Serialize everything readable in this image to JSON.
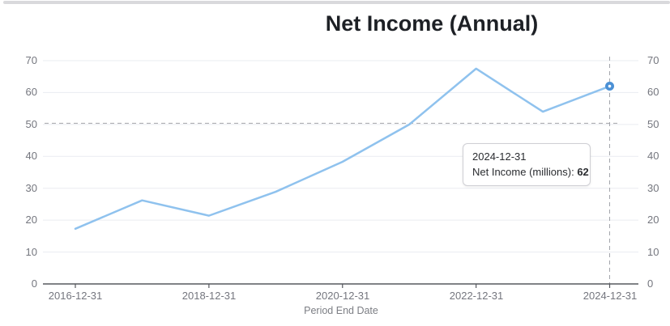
{
  "header": {
    "title": "Net Income (Annual)"
  },
  "chart_data": {
    "type": "line",
    "title": "Net Income (Annual)",
    "xlabel": "Period End Date",
    "ylabel": "",
    "x": [
      "2016-12-31",
      "2017-12-31",
      "2018-12-31",
      "2019-12-31",
      "2020-12-31",
      "2021-12-31",
      "2022-12-31",
      "2023-12-31",
      "2024-12-31"
    ],
    "values": [
      17.3,
      26.2,
      21.4,
      28.9,
      38.3,
      50,
      67.5,
      54,
      62
    ],
    "x_tick_labels": [
      "2016-12-31",
      "2018-12-31",
      "2020-12-31",
      "2022-12-31",
      "2024-12-31"
    ],
    "y_ticks": [
      0,
      10,
      20,
      30,
      40,
      50,
      60,
      70
    ],
    "ylim": [
      0,
      70
    ],
    "grid": true,
    "dual_y_axis": true,
    "reference_line_y": 50,
    "crosshair_x": "2024-12-31",
    "highlighted_point": {
      "x": "2024-12-31",
      "value": 62
    },
    "line_color": "#8fc2ee",
    "marker_color": "#4b90d5",
    "grid_color": "#eaecf1",
    "dashed_color": "#a2a4aa",
    "axis_color": "#56585e",
    "label_color": "#74767e"
  },
  "tooltip": {
    "date": "2024-12-31",
    "label": "Net Income (millions): ",
    "value": "62"
  }
}
